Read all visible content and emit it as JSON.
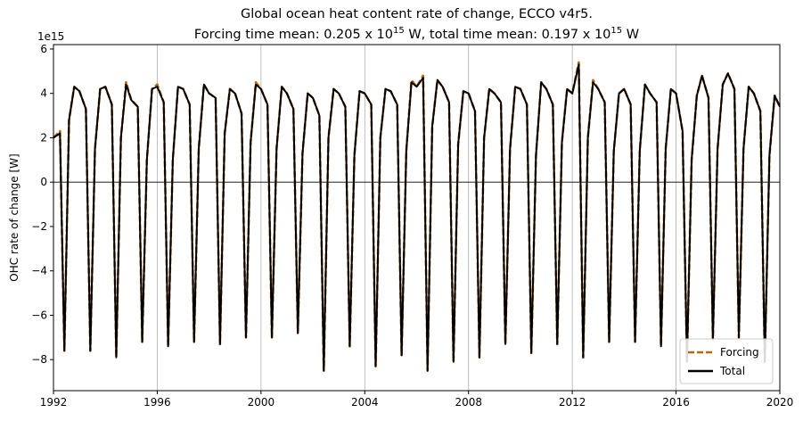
{
  "title": {
    "line1": "Global ocean heat content rate of change, ECCO v4r5.",
    "line2_prefix": "Forcing time mean: 0.205 x 10",
    "line2_exp1": "15",
    "line2_middle": " W, total time mean: 0.197 x 10",
    "line2_exp2": "15",
    "line2_suffix": " W"
  },
  "chart_data": {
    "type": "line",
    "title": "Global ocean heat content rate of change, ECCO v4r5. Forcing time mean: 0.205 x 10^15 W, total time mean: 0.197 x 10^15 W",
    "xlabel": "",
    "ylabel": "OHC rate of change [W]",
    "offset_text": "1e15",
    "xlim": [
      1992,
      2020
    ],
    "ylim": [
      -9.4,
      6.2
    ],
    "x_ticks": [
      "1992",
      "1996",
      "2000",
      "2004",
      "2008",
      "2012",
      "2016",
      "2020"
    ],
    "y_ticks": [
      "−8",
      "−6",
      "−4",
      "−2",
      "0",
      "2",
      "4",
      "6"
    ],
    "grid": "vertical lines at x ticks",
    "legend_position": "bottom-right",
    "x": [
      1992.0,
      1992.25,
      1992.42,
      1992.6,
      1992.8,
      1993.0,
      1993.25,
      1993.42,
      1993.6,
      1993.8,
      1994.0,
      1994.25,
      1994.42,
      1994.6,
      1994.8,
      1995.0,
      1995.25,
      1995.42,
      1995.6,
      1995.8,
      1996.0,
      1996.25,
      1996.42,
      1996.6,
      1996.8,
      1997.0,
      1997.25,
      1997.42,
      1997.6,
      1997.8,
      1998.0,
      1998.25,
      1998.42,
      1998.6,
      1998.8,
      1999.0,
      1999.25,
      1999.42,
      1999.6,
      1999.8,
      2000.0,
      2000.25,
      2000.42,
      2000.6,
      2000.8,
      2001.0,
      2001.25,
      2001.42,
      2001.6,
      2001.8,
      2002.0,
      2002.25,
      2002.42,
      2002.6,
      2002.8,
      2003.0,
      2003.25,
      2003.42,
      2003.6,
      2003.8,
      2004.0,
      2004.25,
      2004.42,
      2004.6,
      2004.8,
      2005.0,
      2005.25,
      2005.42,
      2005.6,
      2005.8,
      2006.0,
      2006.25,
      2006.42,
      2006.6,
      2006.8,
      2007.0,
      2007.25,
      2007.42,
      2007.6,
      2007.8,
      2008.0,
      2008.25,
      2008.42,
      2008.6,
      2008.8,
      2009.0,
      2009.25,
      2009.42,
      2009.6,
      2009.8,
      2010.0,
      2010.25,
      2010.42,
      2010.6,
      2010.8,
      2011.0,
      2011.25,
      2011.42,
      2011.6,
      2011.8,
      2012.0,
      2012.25,
      2012.42,
      2012.6,
      2012.8,
      2013.0,
      2013.25,
      2013.42,
      2013.6,
      2013.8,
      2014.0,
      2014.25,
      2014.42,
      2014.6,
      2014.8,
      2015.0,
      2015.25,
      2015.42,
      2015.6,
      2015.8,
      2016.0,
      2016.25,
      2016.42,
      2016.6,
      2016.8,
      2017.0,
      2017.25,
      2017.42,
      2017.6,
      2017.8,
      2018.0,
      2018.25,
      2018.42,
      2018.6,
      2018.8,
      2019.0,
      2019.25,
      2019.42,
      2019.6,
      2019.8,
      2020.0
    ],
    "series": [
      {
        "name": "Forcing",
        "color": "#b8680a",
        "style": "dashed",
        "values": [
          2.0,
          2.3,
          -7.6,
          2.8,
          4.3,
          4.1,
          3.3,
          -7.6,
          1.5,
          4.2,
          4.3,
          3.5,
          -7.9,
          2.0,
          4.5,
          3.7,
          3.4,
          -7.2,
          1.0,
          4.2,
          4.4,
          3.6,
          -7.4,
          1.0,
          4.3,
          4.2,
          3.5,
          -7.2,
          1.5,
          4.4,
          4.0,
          3.8,
          -7.3,
          2.2,
          4.2,
          4.0,
          3.1,
          -7.0,
          1.8,
          4.5,
          4.2,
          3.5,
          -7.0,
          1.5,
          4.3,
          4.0,
          3.3,
          -6.8,
          1.3,
          4.0,
          3.8,
          3.0,
          -8.5,
          2.0,
          4.2,
          4.0,
          3.4,
          -7.4,
          1.2,
          4.1,
          4.0,
          3.5,
          -8.3,
          2.0,
          4.2,
          4.1,
          3.5,
          -7.8,
          1.4,
          4.6,
          4.3,
          4.8,
          -8.5,
          2.5,
          4.6,
          4.3,
          3.6,
          -8.1,
          1.7,
          4.1,
          4.0,
          3.2,
          -7.9,
          2.0,
          4.2,
          4.0,
          3.6,
          -7.3,
          1.5,
          4.3,
          4.2,
          3.5,
          -7.7,
          1.2,
          4.5,
          4.2,
          3.5,
          -7.3,
          1.8,
          4.2,
          4.0,
          5.4,
          -7.9,
          2.0,
          4.6,
          4.2,
          3.6,
          -7.2,
          1.4,
          4.0,
          4.2,
          3.5,
          -7.2,
          1.4,
          4.4,
          4.0,
          3.6,
          -7.4,
          1.5,
          4.2,
          4.0,
          2.3,
          -8.1,
          1.0,
          3.9,
          4.8,
          3.8,
          -7.1,
          1.5,
          4.4,
          4.9,
          4.2,
          -7.0,
          1.5,
          4.3,
          4.0,
          3.2,
          -8.1,
          1.2,
          3.9,
          3.4
        ]
      },
      {
        "name": "Total",
        "color": "#000000",
        "style": "solid",
        "values": [
          2.0,
          2.2,
          -7.6,
          2.8,
          4.3,
          4.1,
          3.3,
          -7.6,
          1.5,
          4.2,
          4.3,
          3.5,
          -7.9,
          2.0,
          4.4,
          3.7,
          3.4,
          -7.2,
          1.0,
          4.2,
          4.3,
          3.6,
          -7.4,
          1.0,
          4.3,
          4.2,
          3.5,
          -7.2,
          1.5,
          4.4,
          4.0,
          3.8,
          -7.3,
          2.2,
          4.2,
          4.0,
          3.1,
          -7.0,
          1.8,
          4.4,
          4.2,
          3.5,
          -7.0,
          1.5,
          4.3,
          4.0,
          3.3,
          -6.8,
          1.3,
          4.0,
          3.8,
          3.0,
          -8.5,
          2.0,
          4.2,
          4.0,
          3.4,
          -7.4,
          1.2,
          4.1,
          4.0,
          3.5,
          -8.3,
          2.0,
          4.2,
          4.1,
          3.5,
          -7.8,
          1.4,
          4.5,
          4.3,
          4.7,
          -8.5,
          2.5,
          4.6,
          4.3,
          3.6,
          -8.1,
          1.7,
          4.1,
          4.0,
          3.2,
          -7.9,
          2.0,
          4.2,
          4.0,
          3.6,
          -7.3,
          1.5,
          4.3,
          4.2,
          3.5,
          -7.7,
          1.2,
          4.5,
          4.2,
          3.5,
          -7.3,
          1.8,
          4.2,
          4.0,
          5.3,
          -7.9,
          2.0,
          4.5,
          4.2,
          3.6,
          -7.2,
          1.4,
          4.0,
          4.2,
          3.5,
          -7.2,
          1.4,
          4.4,
          4.0,
          3.6,
          -7.4,
          1.5,
          4.2,
          4.0,
          2.3,
          -8.1,
          1.0,
          3.9,
          4.8,
          3.8,
          -7.1,
          1.5,
          4.4,
          4.9,
          4.2,
          -7.0,
          1.5,
          4.3,
          4.0,
          3.2,
          -8.1,
          1.2,
          3.9,
          3.4
        ]
      }
    ],
    "legend": [
      {
        "label": "Forcing",
        "color": "#b8680a",
        "style": "dashed"
      },
      {
        "label": "Total",
        "color": "#000000",
        "style": "solid"
      }
    ]
  }
}
